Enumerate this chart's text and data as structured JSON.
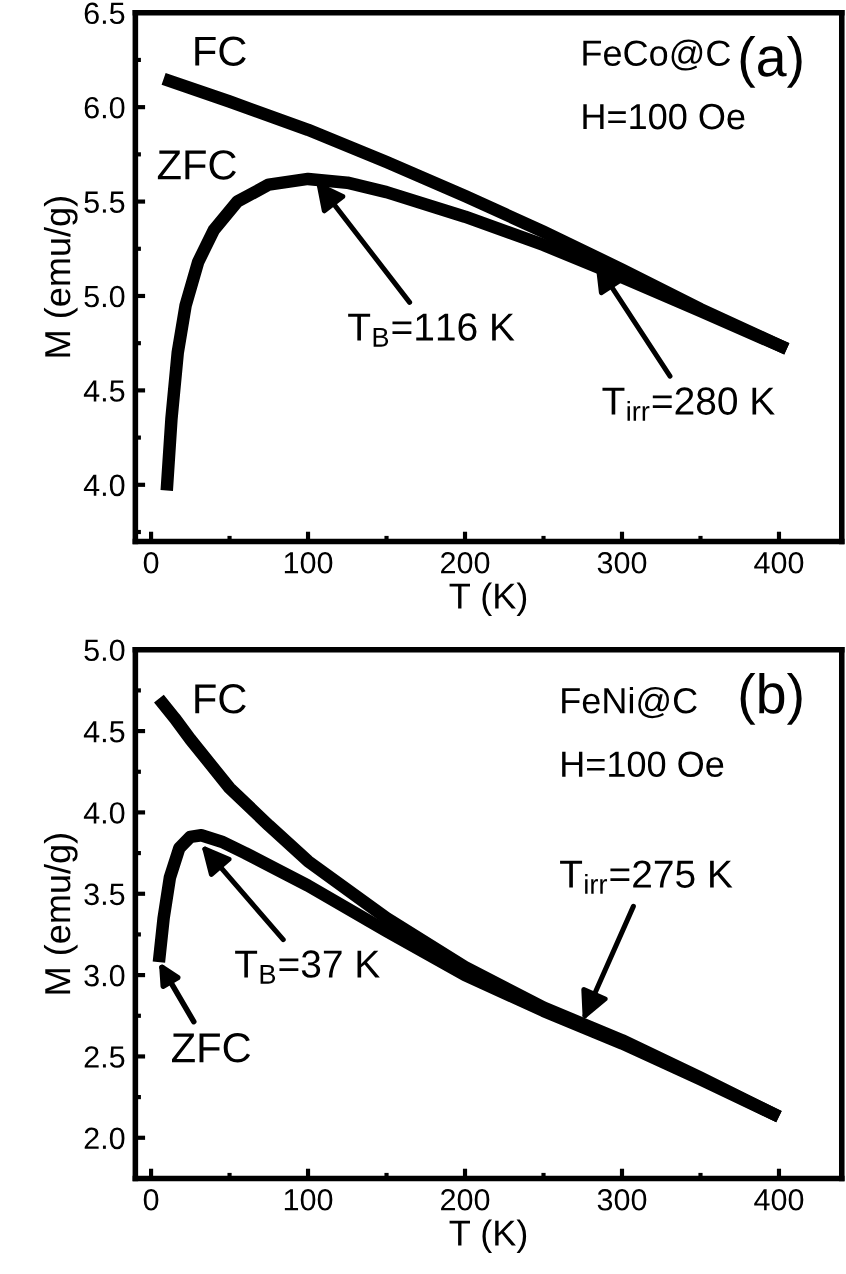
{
  "chart_data": [
    {
      "type": "line",
      "xlabel": "T (K)",
      "ylabel": "M (emu/g)",
      "xlim": [
        -10,
        440
      ],
      "ylim": [
        3.7,
        6.5
      ],
      "xticks": [
        0,
        100,
        200,
        300,
        400
      ],
      "yticks": [
        {
          "value": 4,
          "label": "4.0"
        },
        4.5,
        {
          "value": 5,
          "label": "5.0"
        },
        5.5,
        {
          "value": 6,
          "label": "6.0"
        },
        6.5
      ],
      "grid": false,
      "marker": "none",
      "line_style": "solid",
      "series": [
        {
          "name": "FC",
          "color": "#000000",
          "x": [
            8,
            50,
            100,
            150,
            200,
            250,
            300,
            350,
            405
          ],
          "values": [
            6.15,
            6.03,
            5.88,
            5.71,
            5.53,
            5.34,
            5.14,
            4.93,
            4.72
          ]
        },
        {
          "name": "ZFC",
          "color": "#000000",
          "x": [
            10,
            13,
            17,
            22,
            30,
            40,
            55,
            75,
            100,
            125,
            150,
            200,
            250,
            300,
            350,
            405
          ],
          "values": [
            3.97,
            4.35,
            4.7,
            4.95,
            5.18,
            5.35,
            5.5,
            5.59,
            5.62,
            5.6,
            5.55,
            5.42,
            5.27,
            5.1,
            4.92,
            4.72
          ]
        }
      ],
      "annotations": [
        "FeCo@C",
        "H=100 Oe",
        "(a)",
        {
          "text": "T$_{B}$=116 K",
          "x": 105,
          "y": 5.61
        },
        {
          "text": "T$_{irr}$=280 K",
          "x": 283,
          "y": 5.18
        }
      ]
    },
    {
      "type": "line",
      "xlabel": "T (K)",
      "ylabel": "M (emu/g)",
      "xlim": [
        -10,
        440
      ],
      "ylim": [
        1.75,
        5.0
      ],
      "xticks": [
        0,
        100,
        200,
        300,
        400
      ],
      "yticks": [
        {
          "value": 2,
          "label": "2.0"
        },
        2.5,
        {
          "value": 3,
          "label": "3.0"
        },
        3.5,
        {
          "value": 4,
          "label": "4.0"
        },
        4.5,
        {
          "value": 5,
          "label": "5.0"
        }
      ],
      "grid": false,
      "marker": "none",
      "line_style": "solid",
      "series": [
        {
          "name": "FC",
          "color": "#000000",
          "x": [
            5,
            15,
            25,
            50,
            75,
            100,
            150,
            200,
            250,
            300,
            350,
            400
          ],
          "values": [
            4.7,
            4.58,
            4.45,
            4.15,
            3.92,
            3.7,
            3.35,
            3.05,
            2.8,
            2.6,
            2.37,
            2.13
          ]
        },
        {
          "name": "ZFC",
          "color": "#000000",
          "x": [
            5,
            8,
            12,
            18,
            25,
            32,
            45,
            60,
            80,
            100,
            150,
            200,
            250,
            300,
            350,
            400
          ],
          "values": [
            3.08,
            3.35,
            3.6,
            3.78,
            3.85,
            3.86,
            3.82,
            3.75,
            3.65,
            3.55,
            3.27,
            3.0,
            2.78,
            2.58,
            2.36,
            2.13
          ]
        }
      ],
      "annotations": [
        "FeNi@C",
        "H=100 Oe",
        "(b)",
        {
          "text": "T$_{B}$=37 K",
          "x": 32,
          "y": 3.8
        },
        {
          "text": "T$_{irr}$=275 K",
          "x": 275,
          "y": 2.72
        }
      ]
    }
  ]
}
